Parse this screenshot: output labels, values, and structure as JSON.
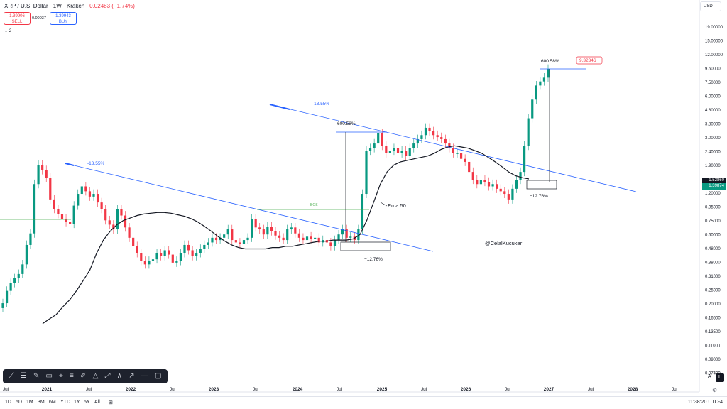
{
  "header": {
    "symbol": "XRP / U.S. Dollar · 1W · Kraken",
    "change": "−0.02483 (−1.74%)"
  },
  "trade": {
    "sell_price": "1.39906",
    "sell_label": "SELL",
    "spread": "0.00037",
    "buy_price": "1.39943",
    "buy_label": "BUY",
    "indicator_count": "2"
  },
  "currency_button": "USD",
  "price_labels": {
    "upper": "1.52860",
    "upper_color": "#131722",
    "current": "1.39874",
    "current_color": "#089981"
  },
  "toolbar_icons": [
    "trend-line-icon",
    "fib-icon",
    "brush-icon",
    "text-icon",
    "pattern-icon",
    "forecast-icon",
    "measure-icon",
    "shapes-icon",
    "path-icon",
    "line-icon",
    "arrow-icon",
    "hline-icon",
    "rect-icon"
  ],
  "bottom": {
    "timeframes": [
      "1D",
      "5D",
      "1M",
      "3M",
      "6M",
      "YTD",
      "1Y",
      "5Y",
      "All"
    ],
    "clock": "11:38:20 UTC-4",
    "auto_label": "A",
    "log_label": "L"
  },
  "colors": {
    "up": "#089981",
    "down": "#f23645",
    "trend": "#2962ff",
    "ema": "#131722",
    "bos": "#4caf50"
  },
  "chart_data": {
    "type": "candlestick",
    "scale": "log",
    "y_tick_labels": [
      "19.00000",
      "15.00000",
      "12.00000",
      "9.50000",
      "7.50000",
      "6.00000",
      "4.80000",
      "3.80000",
      "3.00000",
      "2.40000",
      "1.90000",
      "1.50000",
      "1.20000",
      "0.95000",
      "0.75000",
      "0.60000",
      "0.48000",
      "0.38000",
      "0.31000",
      "0.25000",
      "0.20000",
      "0.16500",
      "0.13500",
      "0.11000",
      "0.09000",
      "0.07400"
    ],
    "x_tick_labels": [
      "Jul",
      "2021",
      "Jul",
      "2022",
      "Jul",
      "2023",
      "Jul",
      "2024",
      "Jul",
      "2025",
      "Jul",
      "2026",
      "Jul",
      "2027",
      "Jul",
      "2028",
      "Jul"
    ],
    "close_series": [
      0.17,
      0.21,
      0.24,
      0.26,
      0.28,
      0.33,
      0.46,
      0.56,
      1.3,
      1.8,
      1.65,
      1.45,
      1.0,
      0.85,
      0.78,
      0.72,
      0.68,
      0.66,
      0.9,
      1.1,
      1.25,
      1.15,
      1.05,
      1.1,
      0.95,
      0.85,
      0.7,
      0.65,
      0.6,
      0.85,
      0.76,
      0.62,
      0.52,
      0.45,
      0.4,
      0.35,
      0.33,
      0.35,
      0.36,
      0.4,
      0.38,
      0.42,
      0.39,
      0.34,
      0.35,
      0.4,
      0.46,
      0.42,
      0.38,
      0.4,
      0.43,
      0.46,
      0.48,
      0.52,
      0.5,
      0.52,
      0.55,
      0.6,
      0.5,
      0.48,
      0.47,
      0.5,
      0.52,
      0.72,
      0.62,
      0.6,
      0.55,
      0.63,
      0.58,
      0.54,
      0.52,
      0.5,
      0.6,
      0.62,
      0.56,
      0.52,
      0.5,
      0.53,
      0.51,
      0.52,
      0.48,
      0.5,
      0.48,
      0.45,
      0.5,
      0.55,
      0.6,
      0.52,
      0.53,
      0.5,
      0.6,
      1.1,
      2.3,
      2.4,
      2.6,
      3.1,
      2.5,
      2.2,
      2.3,
      2.4,
      2.2,
      2.3,
      2.1,
      2.4,
      2.6,
      2.8,
      3.0,
      3.4,
      3.2,
      3.0,
      2.9,
      2.8,
      2.6,
      2.4,
      2.2,
      2.2,
      2.0,
      1.9,
      1.6,
      1.4,
      1.3,
      1.4,
      1.35,
      1.25,
      1.3,
      1.2,
      1.15,
      1.1,
      1.0,
      1.2,
      1.4,
      1.6,
      2.5,
      4.0,
      5.5,
      7.0,
      7.5,
      8.0,
      9.3
    ],
    "ema_label": "Ema 50",
    "ema_series": [
      0.12,
      0.13,
      0.14,
      0.16,
      0.18,
      0.21,
      0.25,
      0.3,
      0.4,
      0.5,
      0.58,
      0.65,
      0.7,
      0.73,
      0.76,
      0.78,
      0.79,
      0.8,
      0.8,
      0.79,
      0.77,
      0.75,
      0.72,
      0.68,
      0.63,
      0.58,
      0.53,
      0.49,
      0.46,
      0.44,
      0.43,
      0.43,
      0.43,
      0.43,
      0.44,
      0.44,
      0.45,
      0.45,
      0.46,
      0.47,
      0.48,
      0.49,
      0.49,
      0.5,
      0.5,
      0.5,
      0.51,
      0.55,
      0.7,
      0.95,
      1.3,
      1.6,
      1.8,
      1.9,
      1.95,
      2.0,
      2.05,
      2.1,
      2.2,
      2.35,
      2.45,
      2.5,
      2.45,
      2.4,
      2.3,
      2.2,
      2.05,
      1.9,
      1.75,
      1.6,
      1.5,
      1.45,
      1.42
    ],
    "annotations": {
      "trend_pct_1": "-13.55%",
      "trend_pct_2": "-13.55%",
      "measure_up_1": "600.58%",
      "measure_up_2": "600.58%",
      "measure_down_1": "−12.76%",
      "measure_down_2": "−12.76%",
      "target_price": "9.32346",
      "bos_label": "BOS",
      "watermark": "@CelalKucuker"
    }
  }
}
